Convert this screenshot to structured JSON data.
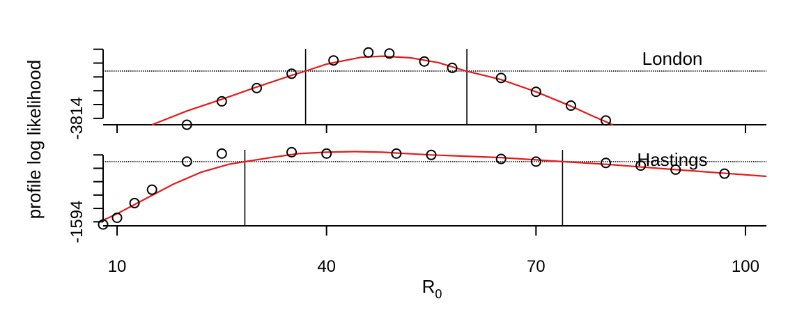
{
  "chart_data": {
    "type": "scatter",
    "ylabel": "profile log likelihood",
    "xlabel_main": "R",
    "xlabel_sub": "0",
    "xlim": [
      8,
      103
    ],
    "x_ticks": [
      10,
      40,
      70,
      100
    ],
    "x_tick_labels": [
      "10",
      "40",
      "70",
      "100"
    ],
    "panels": [
      {
        "name": "London",
        "ylim": [
          -3815.2,
          -3799.6
        ],
        "y_label_value": -3814,
        "y_label_text": "-3814",
        "y_ticks": [
          -3814,
          -3811.4,
          -3808.8,
          -3806.2,
          -3803.6,
          -3801
        ],
        "points": [
          {
            "x": 20,
            "y": -3815.2
          },
          {
            "x": 25,
            "y": -3810.8
          },
          {
            "x": 30,
            "y": -3808.3
          },
          {
            "x": 35,
            "y": -3805.6
          },
          {
            "x": 41,
            "y": -3803.1
          },
          {
            "x": 46,
            "y": -3801.6
          },
          {
            "x": 49,
            "y": -3801.8
          },
          {
            "x": 54,
            "y": -3803.3
          },
          {
            "x": 58,
            "y": -3804.5
          },
          {
            "x": 65,
            "y": -3806.4
          },
          {
            "x": 70,
            "y": -3809.0
          },
          {
            "x": 75,
            "y": -3811.6
          },
          {
            "x": 80,
            "y": -3814.4
          }
        ],
        "curve": [
          {
            "x": 15,
            "y": -3815.2
          },
          {
            "x": 20,
            "y": -3812.6
          },
          {
            "x": 25,
            "y": -3810.4
          },
          {
            "x": 30,
            "y": -3808.1
          },
          {
            "x": 35,
            "y": -3805.9
          },
          {
            "x": 37,
            "y": -3805.1
          },
          {
            "x": 40,
            "y": -3803.8
          },
          {
            "x": 45,
            "y": -3802.5
          },
          {
            "x": 48,
            "y": -3802.3
          },
          {
            "x": 52,
            "y": -3802.6
          },
          {
            "x": 56,
            "y": -3803.5
          },
          {
            "x": 60,
            "y": -3805.1
          },
          {
            "x": 65,
            "y": -3806.7
          },
          {
            "x": 70,
            "y": -3809.0
          },
          {
            "x": 75,
            "y": -3811.7
          },
          {
            "x": 78,
            "y": -3813.5
          },
          {
            "x": 81,
            "y": -3815.2
          }
        ],
        "ci_x": [
          37.0,
          60.1
        ],
        "threshold_y": -3805.1
      },
      {
        "name": "Hastings",
        "ylim": [
          -1594.3,
          -1588.1
        ],
        "y_label_value": -1594,
        "y_label_text": "-1594",
        "y_ticks": [
          -1594,
          -1593,
          -1592,
          -1591,
          -1590,
          -1589
        ],
        "points": [
          {
            "x": 8,
            "y": -1594.2
          },
          {
            "x": 10,
            "y": -1593.7
          },
          {
            "x": 12.5,
            "y": -1592.6
          },
          {
            "x": 15,
            "y": -1591.6
          },
          {
            "x": 20,
            "y": -1589.5
          },
          {
            "x": 25,
            "y": -1588.9
          },
          {
            "x": 35,
            "y": -1588.8
          },
          {
            "x": 40,
            "y": -1588.9
          },
          {
            "x": 50,
            "y": -1588.9
          },
          {
            "x": 55,
            "y": -1589.0
          },
          {
            "x": 65,
            "y": -1589.3
          },
          {
            "x": 70,
            "y": -1589.5
          },
          {
            "x": 80,
            "y": -1589.6
          },
          {
            "x": 85,
            "y": -1589.8
          },
          {
            "x": 90,
            "y": -1590.1
          },
          {
            "x": 97,
            "y": -1590.4
          }
        ],
        "curve": [
          {
            "x": 7.5,
            "y": -1594.0
          },
          {
            "x": 10,
            "y": -1593.4
          },
          {
            "x": 14,
            "y": -1592.3
          },
          {
            "x": 18,
            "y": -1591.2
          },
          {
            "x": 22,
            "y": -1590.3
          },
          {
            "x": 26,
            "y": -1589.7
          },
          {
            "x": 28.3,
            "y": -1589.5
          },
          {
            "x": 32,
            "y": -1589.2
          },
          {
            "x": 36,
            "y": -1588.9
          },
          {
            "x": 40,
            "y": -1588.8
          },
          {
            "x": 44,
            "y": -1588.75
          },
          {
            "x": 48,
            "y": -1588.8
          },
          {
            "x": 55,
            "y": -1589.0
          },
          {
            "x": 65,
            "y": -1589.2
          },
          {
            "x": 73.8,
            "y": -1589.5
          },
          {
            "x": 80,
            "y": -1589.7
          },
          {
            "x": 90,
            "y": -1590.1
          },
          {
            "x": 103,
            "y": -1590.6
          }
        ],
        "ci_x": [
          28.3,
          73.8
        ],
        "threshold_y": -1589.5
      }
    ]
  }
}
